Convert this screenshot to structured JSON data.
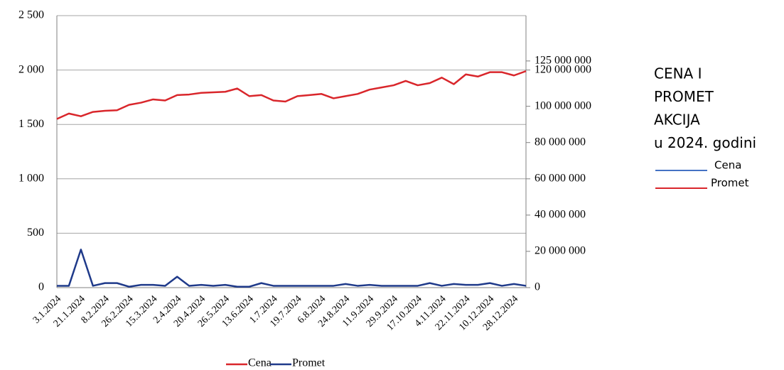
{
  "chart_data": {
    "type": "line",
    "title_lines": [
      "CENA I",
      "PROMET",
      "AKCIJA",
      "u 2024. godini"
    ],
    "categories": [
      "3.1.2024",
      null,
      "21.1.2024",
      null,
      "8.2.2024",
      null,
      "26.2.2024",
      null,
      "15.3.2024",
      null,
      "2.4.2024",
      null,
      "20.4.2024",
      null,
      "26.5.2024",
      null,
      "13.6.2024",
      null,
      "1.7.2024",
      null,
      "19.7.2024",
      null,
      "6.8.2024",
      null,
      "24.8.2024",
      null,
      "11.9.2024",
      null,
      "29.9.2024",
      null,
      "17.10.2024",
      null,
      "4.11.2024",
      null,
      "22.11.2024",
      null,
      "10.12.2024",
      null,
      "28.12.2024",
      null
    ],
    "series": [
      {
        "name": "Cena",
        "color": "#d9262b",
        "axis": "y",
        "values": [
          1550,
          1600,
          1575,
          1615,
          1625,
          1630,
          1680,
          1700,
          1730,
          1720,
          1770,
          1775,
          1790,
          1795,
          1800,
          1830,
          1760,
          1770,
          1720,
          1710,
          1760,
          1770,
          1780,
          1740,
          1760,
          1780,
          1820,
          1840,
          1860,
          1900,
          1860,
          1880,
          1930,
          1870,
          1960,
          1940,
          1980,
          1980,
          1950,
          1990
        ]
      },
      {
        "name": "Promet",
        "color": "#1f3a8a",
        "axis": "y2",
        "values": [
          1000000,
          1000000,
          21000000,
          1000000,
          2500000,
          2500000,
          500000,
          1500000,
          1500000,
          1000000,
          6000000,
          1000000,
          1500000,
          1000000,
          1500000,
          500000,
          500000,
          2500000,
          1000000,
          1000000,
          1000000,
          1000000,
          1000000,
          1000000,
          2000000,
          1000000,
          1500000,
          1000000,
          1000000,
          1000000,
          1000000,
          2500000,
          1000000,
          2000000,
          1500000,
          1500000,
          2500000,
          1000000,
          2000000,
          1000000
        ]
      }
    ],
    "ylim": [
      0,
      2500
    ],
    "yticks": [
      0,
      500,
      {
        "value": 1000,
        "label": "1 000"
      },
      {
        "value": 1500,
        "label": "1 500"
      },
      {
        "value": 2000,
        "label": "2 000"
      },
      {
        "value": 2500,
        "label": "2 500"
      }
    ],
    "y2lim": [
      0,
      150000000
    ],
    "y2ticks": [
      0,
      {
        "value": 20000000,
        "label": "20 000 000"
      },
      {
        "value": 40000000,
        "label": "40 000 000"
      },
      {
        "value": 60000000,
        "label": "60 000 000"
      },
      {
        "value": 80000000,
        "label": "80 000 000"
      },
      {
        "value": 100000000,
        "label": "100 000 000"
      },
      {
        "value": 120000000,
        "label": "120 000 000"
      },
      {
        "value": 125000000,
        "label": "125 000 000"
      }
    ],
    "grid": true,
    "legend": "bottom",
    "side_legend": [
      {
        "name": "Cena",
        "color": "#4472c4"
      },
      {
        "name": "Promet",
        "color": "#d9262b"
      }
    ]
  }
}
